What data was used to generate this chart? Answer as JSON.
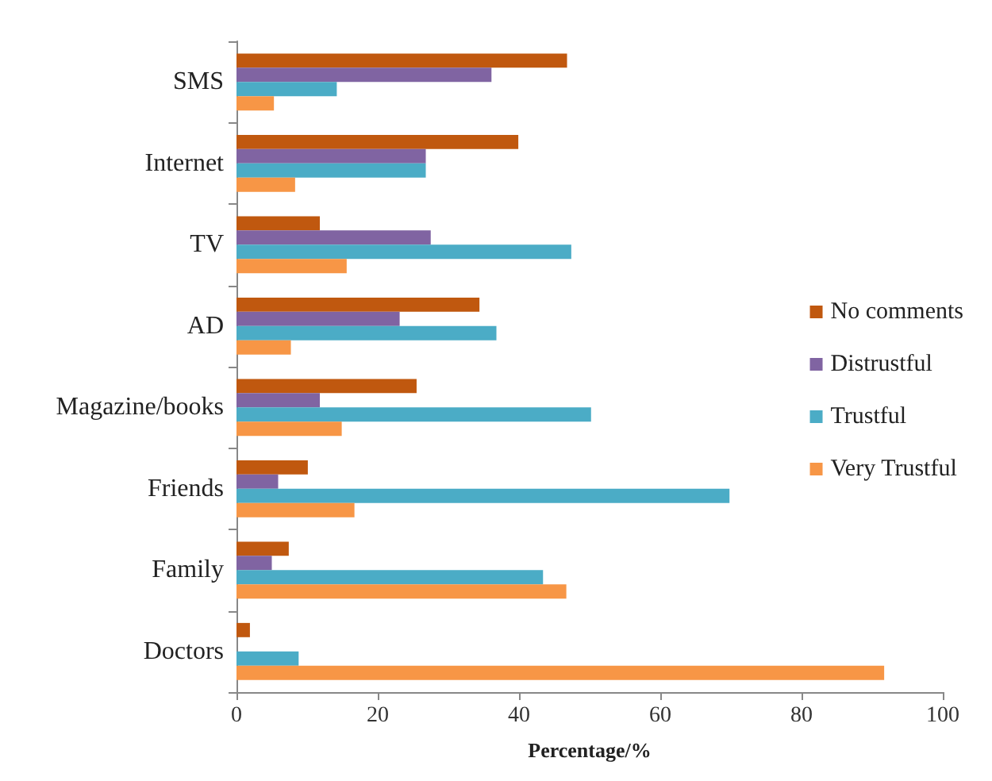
{
  "chart_data": {
    "type": "bar",
    "orientation": "horizontal",
    "xlabel": "Percentage/%",
    "categories": [
      "SMS",
      "Internet",
      "TV",
      "AD",
      "Magazine/books",
      "Friends",
      "Family",
      "Doctors"
    ],
    "series": [
      {
        "name": "No comments",
        "color": "#c0580f",
        "values": [
          46.8,
          39.9,
          11.8,
          34.4,
          25.5,
          10.1,
          7.4,
          1.9
        ]
      },
      {
        "name": "Distrustful",
        "color": "#8064a2",
        "values": [
          36.1,
          26.8,
          27.5,
          23.1,
          11.8,
          5.9,
          5.0,
          0
        ]
      },
      {
        "name": "Trustful",
        "color": "#4bacc6",
        "values": [
          14.2,
          26.8,
          47.4,
          36.8,
          50.2,
          69.8,
          43.4,
          8.8
        ]
      },
      {
        "name": "Very Trustful",
        "color": "#f79646",
        "values": [
          5.3,
          8.3,
          15.6,
          7.7,
          14.9,
          16.7,
          46.7,
          91.7
        ]
      }
    ],
    "xlim": [
      0,
      100
    ],
    "xticks": [
      0,
      20,
      40,
      60,
      80,
      100
    ],
    "grid": false,
    "legend": "right"
  }
}
